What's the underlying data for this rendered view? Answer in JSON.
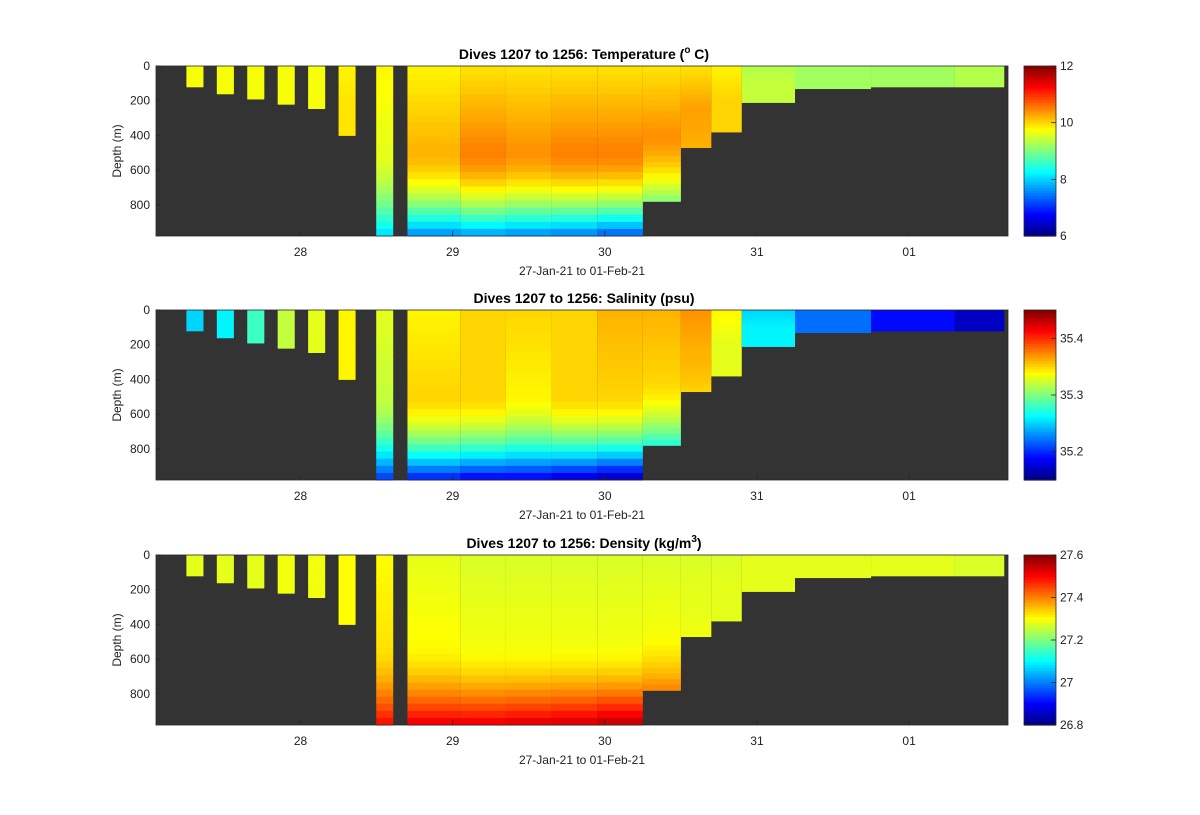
{
  "figure": {
    "background": "#ffffff",
    "land_color": "#333333"
  },
  "chart_data": [
    {
      "type": "heatmap",
      "title": "Dives 1207 to 1256: Temperature (",
      "title_sup": "o",
      "title_tail": " C)",
      "xlabel": "27-Jan-21 to 01-Feb-21",
      "ylabel": "Depth (m)",
      "x_ticks": [
        "28",
        "29",
        "30",
        "31",
        "01"
      ],
      "y_ticks": [
        "0",
        "200",
        "400",
        "600",
        "800"
      ],
      "ylim": [
        0,
        980
      ],
      "colorbar": {
        "min": 6,
        "max": 12,
        "ticks": [
          "6",
          "8",
          "10",
          "12"
        ]
      },
      "profiles": [
        {
          "day": 27.25,
          "max_depth": 120,
          "surface": 9.7,
          "mid": 9.7,
          "deep": 9.7
        },
        {
          "day": 27.45,
          "max_depth": 160,
          "surface": 9.7,
          "mid": 9.7,
          "deep": 9.7
        },
        {
          "day": 27.65,
          "max_depth": 190,
          "surface": 9.7,
          "mid": 9.7,
          "deep": 9.7
        },
        {
          "day": 27.85,
          "max_depth": 220,
          "surface": 9.7,
          "mid": 9.7,
          "deep": 9.7
        },
        {
          "day": 28.05,
          "max_depth": 245,
          "surface": 9.7,
          "mid": 9.7,
          "deep": 9.7
        },
        {
          "day": 28.25,
          "max_depth": 400,
          "surface": 9.8,
          "mid": 9.9,
          "deep": 9.9
        },
        {
          "day": 28.55,
          "max_depth": 980,
          "surface": 9.8,
          "mid": 9.6,
          "deep": 8.0
        },
        {
          "day": 28.9,
          "max_depth": 980,
          "surface": 9.8,
          "mid": 10.2,
          "deep": 7.5
        },
        {
          "day": 29.2,
          "max_depth": 980,
          "surface": 9.9,
          "mid": 10.5,
          "deep": 7.6
        },
        {
          "day": 29.5,
          "max_depth": 980,
          "surface": 9.9,
          "mid": 10.4,
          "deep": 7.5
        },
        {
          "day": 29.8,
          "max_depth": 980,
          "surface": 9.9,
          "mid": 10.5,
          "deep": 7.4
        },
        {
          "day": 30.1,
          "max_depth": 980,
          "surface": 9.9,
          "mid": 10.5,
          "deep": 7.2
        },
        {
          "day": 30.4,
          "max_depth": 780,
          "surface": 9.9,
          "mid": 10.4,
          "deep": 9.0
        },
        {
          "day": 30.6,
          "max_depth": 470,
          "surface": 9.9,
          "mid": 10.3,
          "deep": 10.2
        },
        {
          "day": 30.8,
          "max_depth": 380,
          "surface": 9.8,
          "mid": 10.0,
          "deep": 10.0
        },
        {
          "day": 31.0,
          "max_depth": 210,
          "surface": 9.3,
          "mid": 9.4,
          "deep": 9.4
        },
        {
          "day": 31.5,
          "max_depth": 130,
          "surface": 9.2,
          "mid": 9.2,
          "deep": 9.2
        },
        {
          "day": 32.0,
          "max_depth": 120,
          "surface": 9.2,
          "mid": 9.2,
          "deep": 9.2
        },
        {
          "day": 32.6,
          "max_depth": 120,
          "surface": 9.3,
          "mid": 9.3,
          "deep": 9.3
        }
      ]
    },
    {
      "type": "heatmap",
      "title": "Dives 1207 to 1256: Salinity (psu)",
      "xlabel": "27-Jan-21 to 01-Feb-21",
      "ylabel": "Depth (m)",
      "x_ticks": [
        "28",
        "29",
        "30",
        "31",
        "01"
      ],
      "y_ticks": [
        "0",
        "200",
        "400",
        "600",
        "800"
      ],
      "ylim": [
        0,
        980
      ],
      "colorbar": {
        "min": 35.15,
        "max": 35.45,
        "ticks": [
          "35.2",
          "35.3",
          "35.4"
        ]
      },
      "profiles": [
        {
          "day": 27.25,
          "max_depth": 120,
          "surface": 35.25,
          "mid": 35.25,
          "deep": 35.25
        },
        {
          "day": 27.45,
          "max_depth": 160,
          "surface": 35.26,
          "mid": 35.26,
          "deep": 35.26
        },
        {
          "day": 27.65,
          "max_depth": 190,
          "surface": 35.28,
          "mid": 35.28,
          "deep": 35.28
        },
        {
          "day": 27.85,
          "max_depth": 220,
          "surface": 35.32,
          "mid": 35.32,
          "deep": 35.32
        },
        {
          "day": 28.05,
          "max_depth": 245,
          "surface": 35.33,
          "mid": 35.33,
          "deep": 35.33
        },
        {
          "day": 28.25,
          "max_depth": 400,
          "surface": 35.34,
          "mid": 35.34,
          "deep": 35.34
        },
        {
          "day": 28.55,
          "max_depth": 980,
          "surface": 35.33,
          "mid": 35.32,
          "deep": 35.2
        },
        {
          "day": 28.9,
          "max_depth": 980,
          "surface": 35.34,
          "mid": 35.35,
          "deep": 35.19
        },
        {
          "day": 29.2,
          "max_depth": 980,
          "surface": 35.35,
          "mid": 35.35,
          "deep": 35.18
        },
        {
          "day": 29.5,
          "max_depth": 980,
          "surface": 35.35,
          "mid": 35.34,
          "deep": 35.18
        },
        {
          "day": 29.8,
          "max_depth": 980,
          "surface": 35.35,
          "mid": 35.35,
          "deep": 35.17
        },
        {
          "day": 30.1,
          "max_depth": 980,
          "surface": 35.36,
          "mid": 35.35,
          "deep": 35.16
        },
        {
          "day": 30.4,
          "max_depth": 780,
          "surface": 35.36,
          "mid": 35.35,
          "deep": 35.27
        },
        {
          "day": 30.6,
          "max_depth": 470,
          "surface": 35.37,
          "mid": 35.36,
          "deep": 35.35
        },
        {
          "day": 30.8,
          "max_depth": 380,
          "surface": 35.34,
          "mid": 35.33,
          "deep": 35.33
        },
        {
          "day": 31.0,
          "max_depth": 210,
          "surface": 35.25,
          "mid": 35.26,
          "deep": 35.26
        },
        {
          "day": 31.5,
          "max_depth": 130,
          "surface": 35.22,
          "mid": 35.22,
          "deep": 35.22
        },
        {
          "day": 32.0,
          "max_depth": 120,
          "surface": 35.19,
          "mid": 35.19,
          "deep": 35.19
        },
        {
          "day": 32.6,
          "max_depth": 120,
          "surface": 35.17,
          "mid": 35.17,
          "deep": 35.17
        }
      ]
    },
    {
      "type": "heatmap",
      "title": "Dives 1207 to 1256: Density (kg/m",
      "title_sup": "3",
      "title_tail": ")",
      "xlabel": "27-Jan-21 to 01-Feb-21",
      "ylabel": "Depth (m)",
      "x_ticks": [
        "28",
        "29",
        "30",
        "31",
        "01"
      ],
      "y_ticks": [
        "0",
        "200",
        "400",
        "600",
        "800"
      ],
      "ylim": [
        0,
        980
      ],
      "colorbar": {
        "min": 26.8,
        "max": 27.6,
        "ticks": [
          "26.8",
          "27",
          "27.2",
          "27.4",
          "27.6"
        ]
      },
      "profiles": [
        {
          "day": 27.25,
          "max_depth": 120,
          "surface": 27.28,
          "mid": 27.28,
          "deep": 27.28
        },
        {
          "day": 27.45,
          "max_depth": 160,
          "surface": 27.28,
          "mid": 27.28,
          "deep": 27.28
        },
        {
          "day": 27.65,
          "max_depth": 190,
          "surface": 27.28,
          "mid": 27.28,
          "deep": 27.28
        },
        {
          "day": 27.85,
          "max_depth": 220,
          "surface": 27.29,
          "mid": 27.29,
          "deep": 27.29
        },
        {
          "day": 28.05,
          "max_depth": 245,
          "surface": 27.29,
          "mid": 27.29,
          "deep": 27.29
        },
        {
          "day": 28.25,
          "max_depth": 400,
          "surface": 27.3,
          "mid": 27.3,
          "deep": 27.3
        },
        {
          "day": 28.55,
          "max_depth": 980,
          "surface": 27.3,
          "mid": 27.32,
          "deep": 27.5
        },
        {
          "day": 28.9,
          "max_depth": 980,
          "surface": 27.28,
          "mid": 27.3,
          "deep": 27.52
        },
        {
          "day": 29.2,
          "max_depth": 980,
          "surface": 27.27,
          "mid": 27.29,
          "deep": 27.52
        },
        {
          "day": 29.5,
          "max_depth": 980,
          "surface": 27.27,
          "mid": 27.29,
          "deep": 27.53
        },
        {
          "day": 29.8,
          "max_depth": 980,
          "surface": 27.27,
          "mid": 27.29,
          "deep": 27.54
        },
        {
          "day": 30.1,
          "max_depth": 980,
          "surface": 27.27,
          "mid": 27.29,
          "deep": 27.56
        },
        {
          "day": 30.4,
          "max_depth": 780,
          "surface": 27.27,
          "mid": 27.29,
          "deep": 27.4
        },
        {
          "day": 30.6,
          "max_depth": 470,
          "surface": 27.27,
          "mid": 27.28,
          "deep": 27.29
        },
        {
          "day": 30.8,
          "max_depth": 380,
          "surface": 27.27,
          "mid": 27.28,
          "deep": 27.28
        },
        {
          "day": 31.0,
          "max_depth": 210,
          "surface": 27.28,
          "mid": 27.28,
          "deep": 27.28
        },
        {
          "day": 31.5,
          "max_depth": 130,
          "surface": 27.28,
          "mid": 27.28,
          "deep": 27.28
        },
        {
          "day": 32.0,
          "max_depth": 120,
          "surface": 27.28,
          "mid": 27.28,
          "deep": 27.28
        },
        {
          "day": 32.6,
          "max_depth": 120,
          "surface": 27.27,
          "mid": 27.27,
          "deep": 27.27
        }
      ]
    }
  ]
}
